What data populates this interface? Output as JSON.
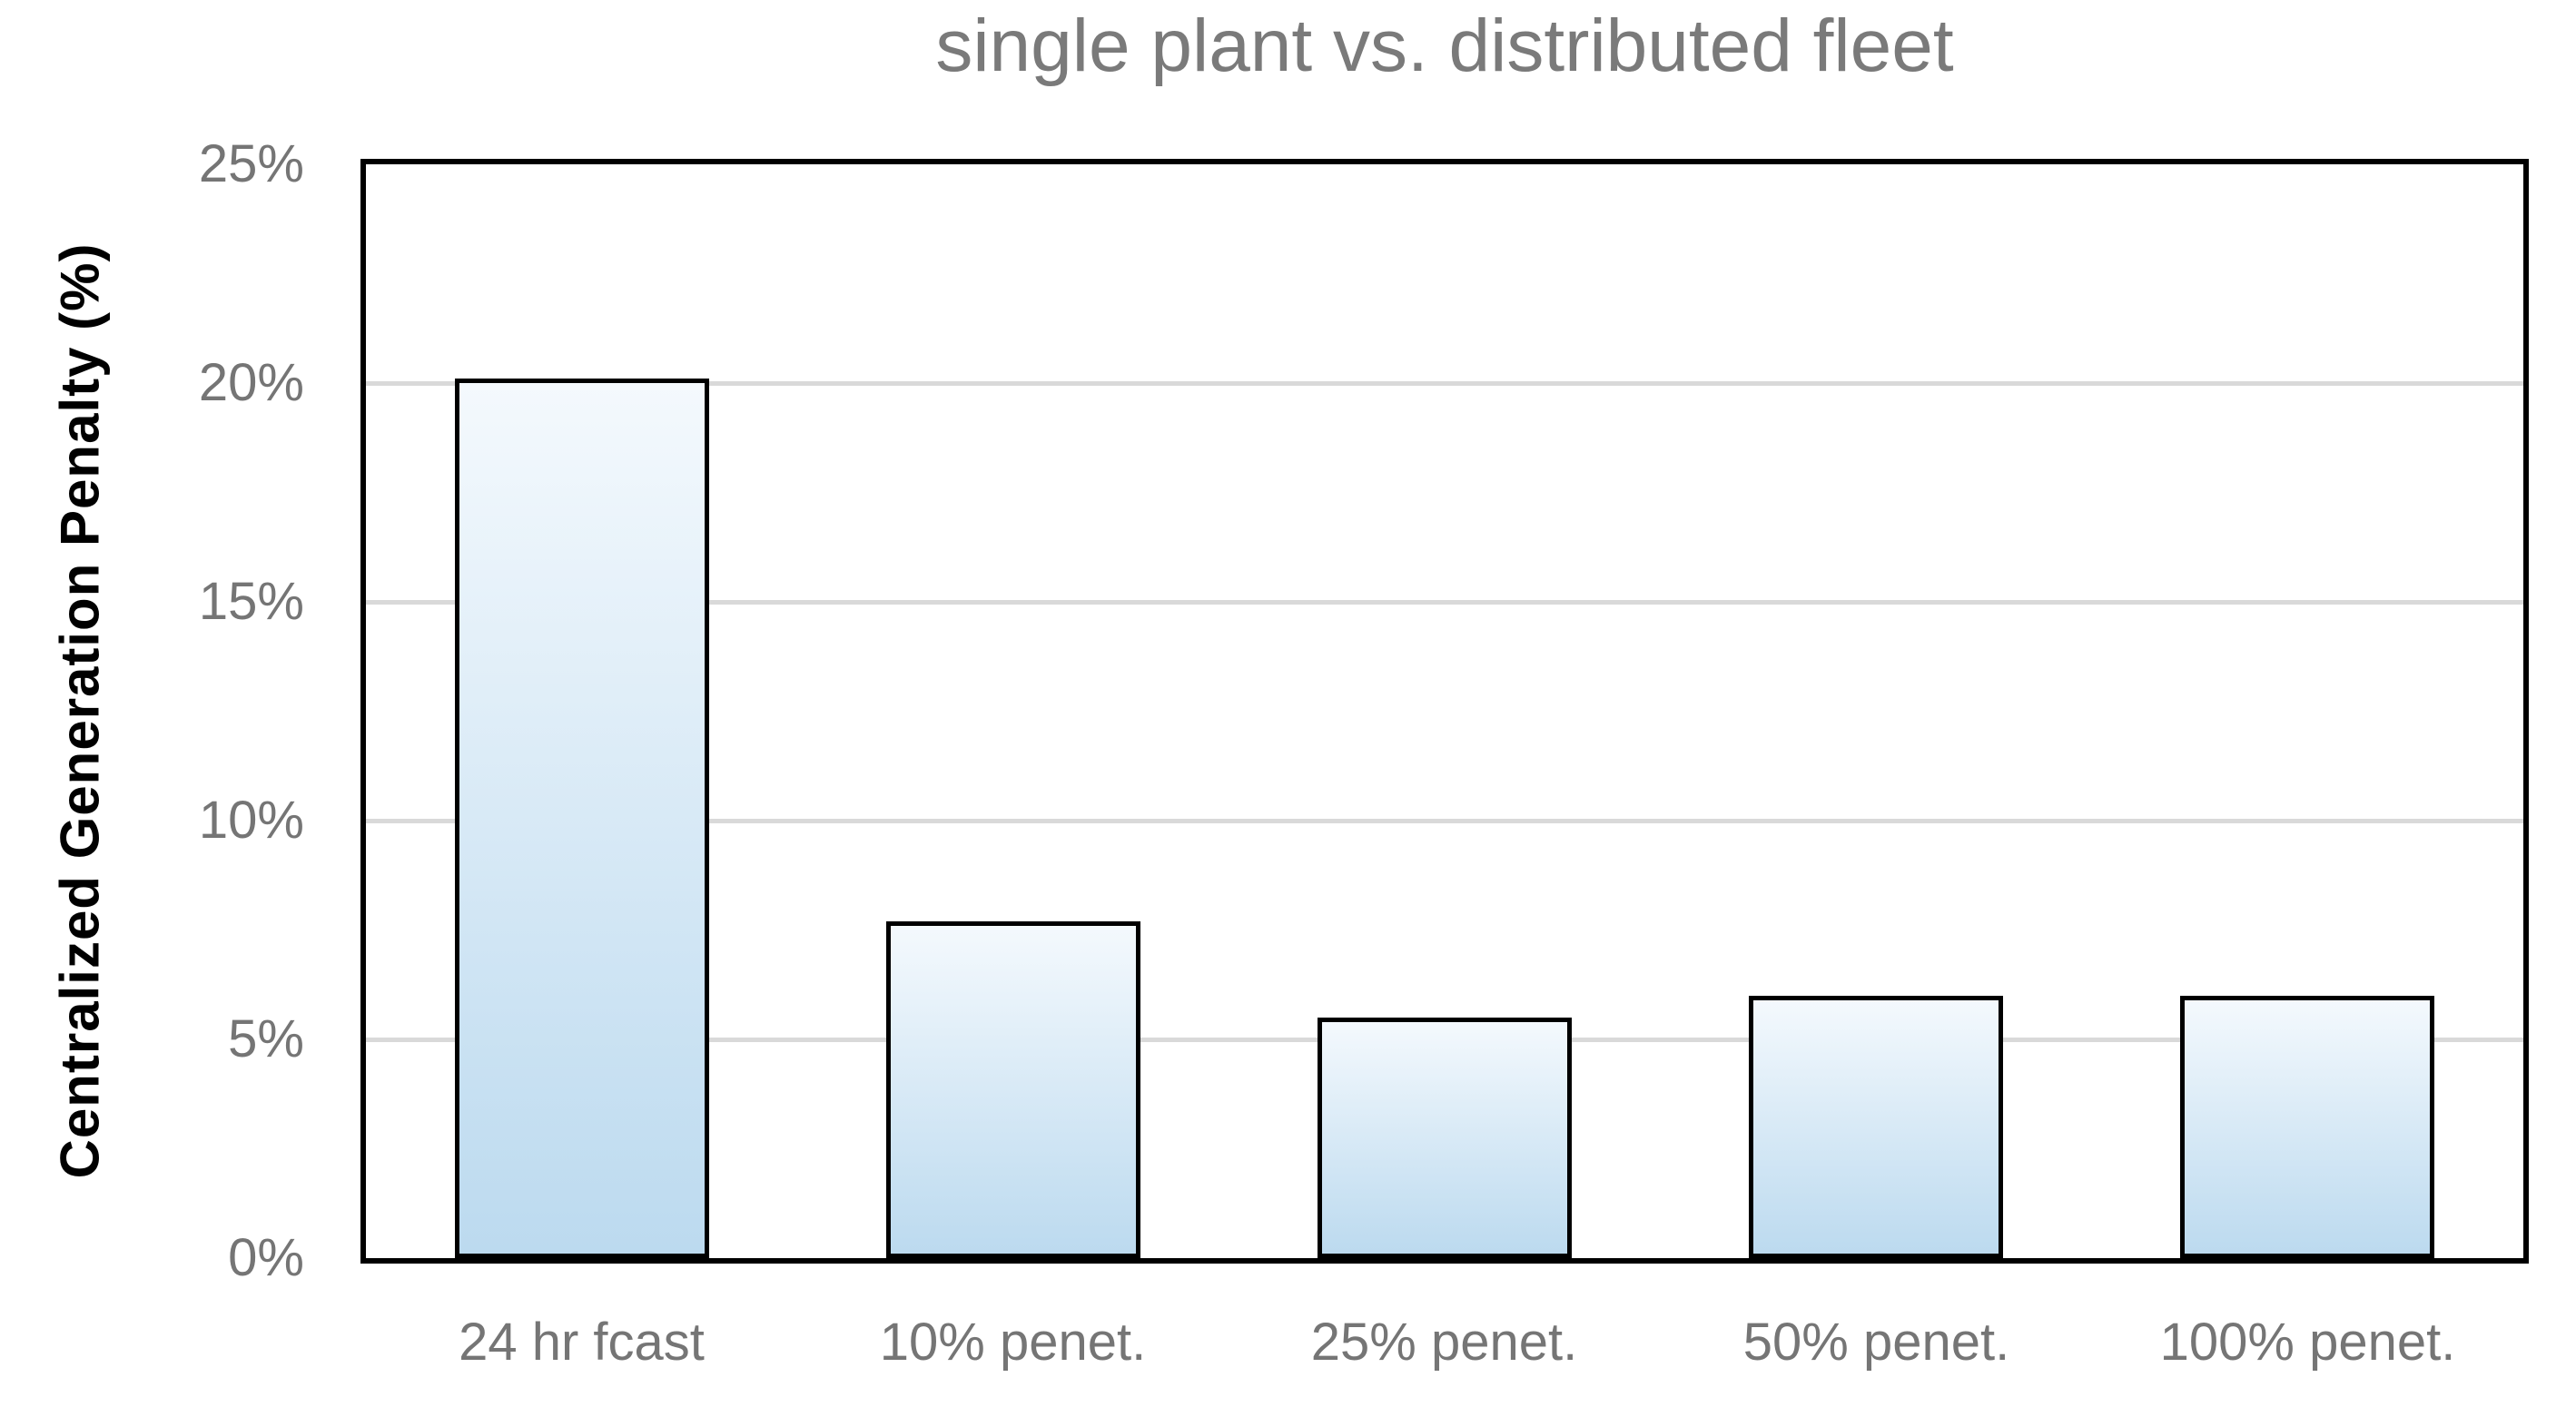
{
  "chart_data": {
    "type": "bar",
    "title": "single plant vs. distributed fleet",
    "categories": [
      "24 hr fcast",
      "10% penet.",
      "25% penet.",
      "50% penet.",
      "100% penet."
    ],
    "values": [
      20.1,
      7.7,
      5.5,
      6.0,
      6.0
    ],
    "xlabel": "",
    "ylabel": "Centralized Generation Penalty (%)",
    "ylim": [
      0,
      25
    ],
    "ytick_step": 5,
    "ytick_suffix": "%",
    "grid": true,
    "legend": false,
    "bar_width_ratio": 0.589
  },
  "colors": {
    "title": "#7a7a7a",
    "tick_label": "#757575",
    "gridline": "#d9d9d9",
    "bar_gradient_top": "#f4f9fd",
    "bar_gradient_bottom": "#bcdaef",
    "bar_border": "#000000",
    "plot_border": "#000000",
    "background": "#ffffff"
  }
}
